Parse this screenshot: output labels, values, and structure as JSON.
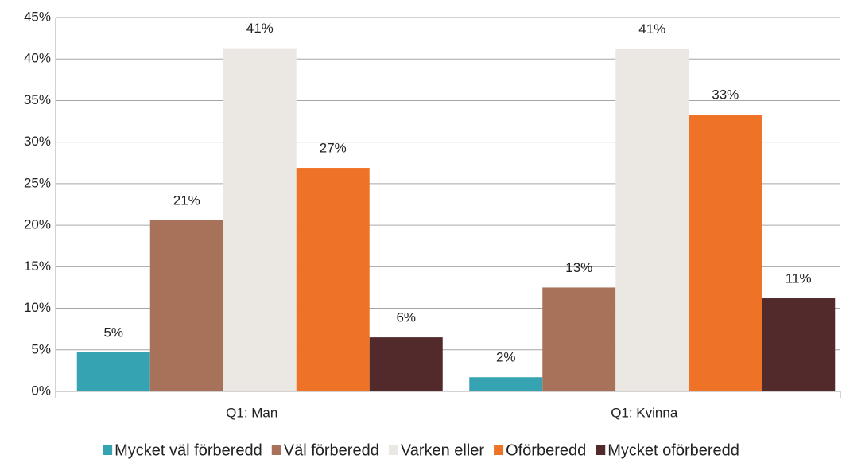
{
  "chart_data": {
    "type": "bar",
    "categories": [
      "Q1: Man",
      "Q1: Kvinna"
    ],
    "series": [
      {
        "name": "Mycket väl förberedd",
        "color": "#35a3b1",
        "values": [
          4.7,
          1.7
        ],
        "value_labels": [
          "5%",
          "2%"
        ]
      },
      {
        "name": "Väl förberedd",
        "color": "#a7715a",
        "values": [
          20.6,
          12.5
        ],
        "value_labels": [
          "21%",
          "13%"
        ]
      },
      {
        "name": "Varken eller",
        "color": "#ebe8e3",
        "values": [
          41.3,
          41.2
        ],
        "value_labels": [
          "41%",
          "41%"
        ]
      },
      {
        "name": "Oförberedd",
        "color": "#ee7326",
        "values": [
          26.9,
          33.3
        ],
        "value_labels": [
          "27%",
          "33%"
        ]
      },
      {
        "name": "Mycket oförberedd",
        "color": "#532a2c",
        "values": [
          6.5,
          11.2
        ],
        "value_labels": [
          "6%",
          "11%"
        ]
      }
    ],
    "ylim": [
      0,
      45
    ],
    "yticks": [
      {
        "value": 0,
        "label": "0%"
      },
      {
        "value": 5,
        "label": "5%"
      },
      {
        "value": 10,
        "label": "10%"
      },
      {
        "value": 15,
        "label": "15%"
      },
      {
        "value": 20,
        "label": "20%"
      },
      {
        "value": 25,
        "label": "25%"
      },
      {
        "value": 30,
        "label": "30%"
      },
      {
        "value": 35,
        "label": "35%"
      },
      {
        "value": 40,
        "label": "40%"
      },
      {
        "value": 45,
        "label": "45%"
      }
    ],
    "grid": true,
    "legend": "bottom"
  }
}
